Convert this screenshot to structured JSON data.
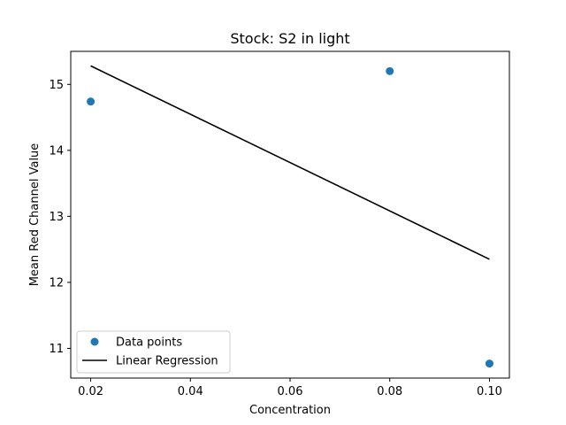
{
  "chart_data": {
    "type": "scatter",
    "title": "Stock: S2 in light",
    "xlabel": "Concentration",
    "ylabel": "Mean Red Channel Value",
    "xlim": [
      0.016,
      0.104
    ],
    "ylim": [
      10.55,
      15.5
    ],
    "x_ticks": [
      0.02,
      0.04,
      0.06,
      0.08,
      0.1
    ],
    "x_tick_labels": [
      "0.02",
      "0.04",
      "0.06",
      "0.08",
      "0.10"
    ],
    "y_ticks": [
      11,
      12,
      13,
      14,
      15
    ],
    "y_tick_labels": [
      "11",
      "12",
      "13",
      "14",
      "15"
    ],
    "grid": false,
    "legend_position": "lower-left",
    "series": [
      {
        "name": "Data points",
        "kind": "scatter",
        "color": "#1f77b4",
        "points": [
          {
            "x": 0.02,
            "y": 14.74
          },
          {
            "x": 0.08,
            "y": 15.2
          },
          {
            "x": 0.1,
            "y": 10.77
          }
        ]
      },
      {
        "name": "Linear Regression",
        "kind": "line",
        "color": "#000000",
        "points": [
          {
            "x": 0.02,
            "y": 15.28
          },
          {
            "x": 0.1,
            "y": 12.35
          }
        ]
      }
    ]
  }
}
